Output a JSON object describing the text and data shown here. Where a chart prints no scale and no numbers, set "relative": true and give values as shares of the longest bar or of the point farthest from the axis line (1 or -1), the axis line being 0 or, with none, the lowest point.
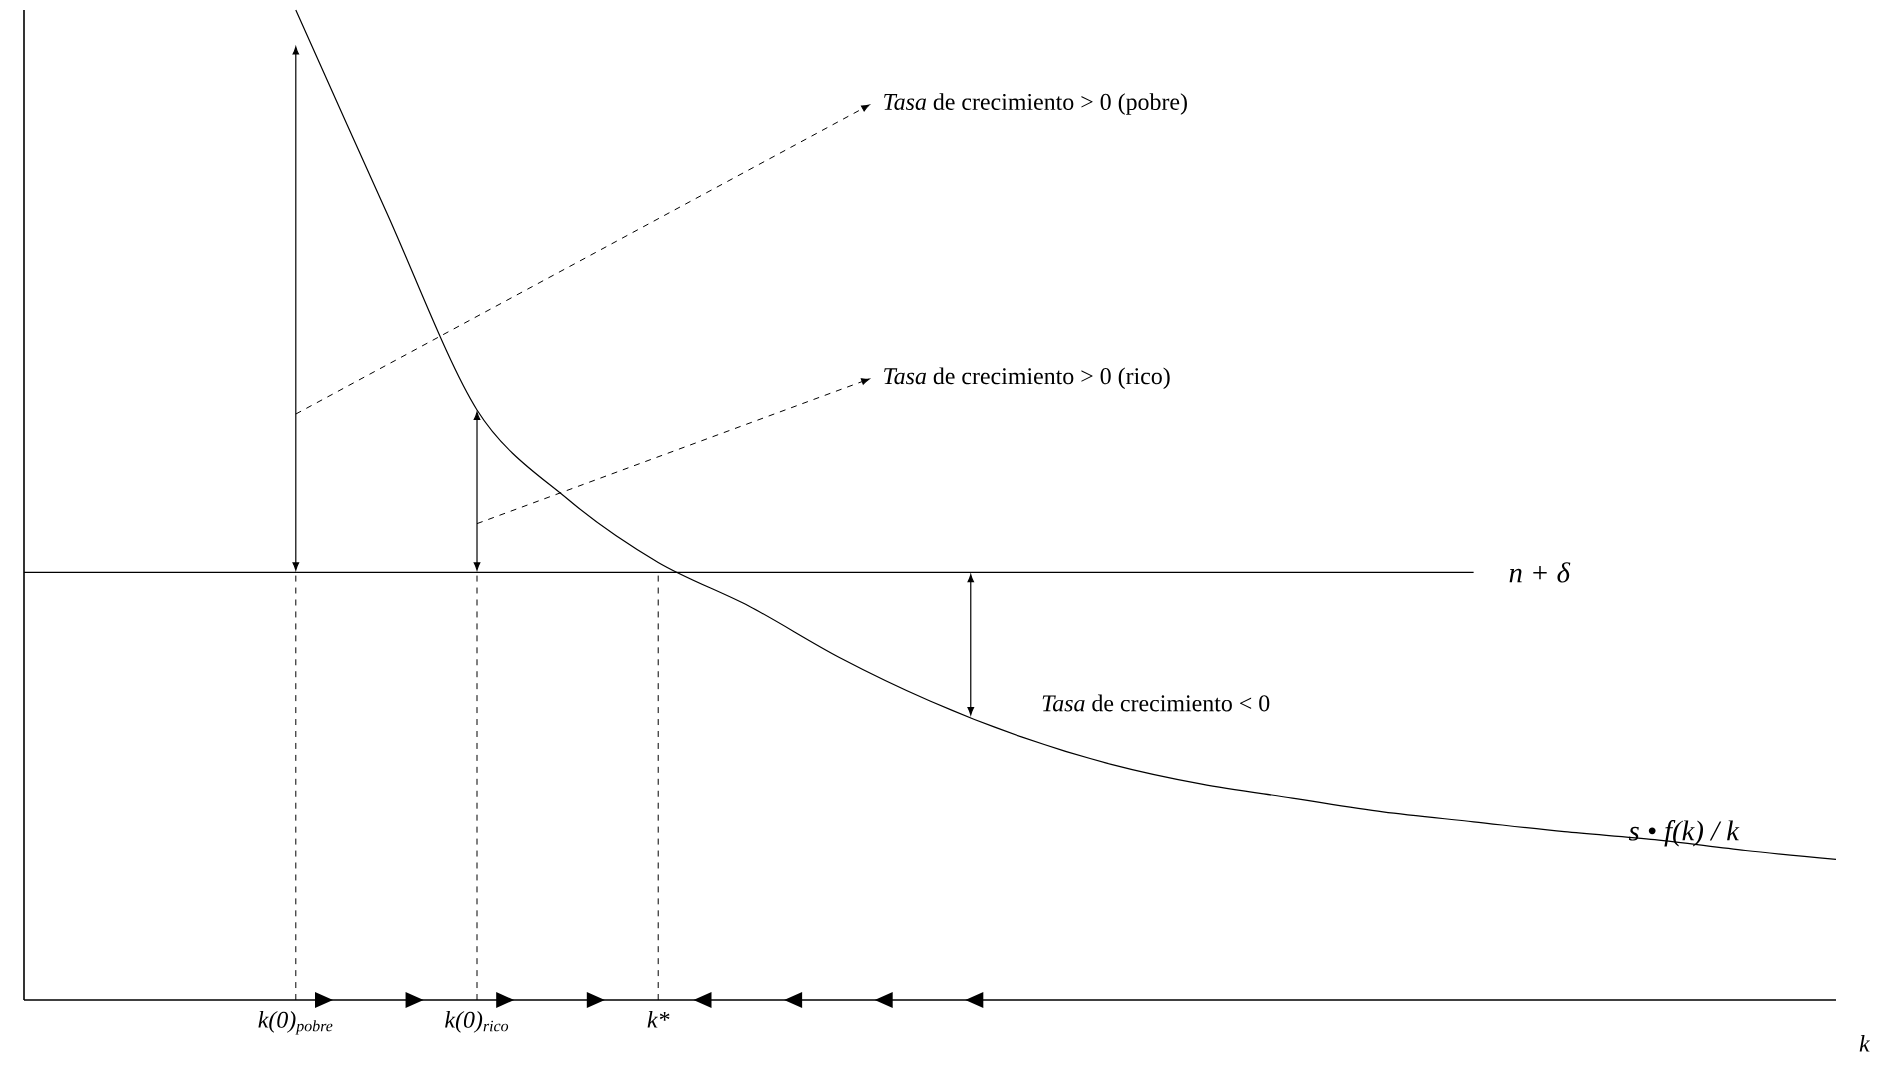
{
  "chart_data": {
    "type": "line",
    "relative": true,
    "categories": [
      null,
      null,
      null,
      "k(0)$_{pobre}$",
      null,
      "k(0)$_{rico}$",
      null,
      "k*",
      null,
      null,
      null,
      null,
      null,
      null,
      null,
      null,
      null,
      null,
      null,
      null,
      null
    ],
    "xlabel": "k",
    "tick_labels": "x",
    "legend": false,
    "marker": "none",
    "series": [
      {
        "name": "n + δ",
        "color": "#000000",
        "values": [
          0.432,
          0.432,
          0.432,
          0.432,
          0.432,
          0.432,
          0.432,
          0.432,
          0.432,
          0.432,
          0.432,
          0.432,
          0.432,
          0.432,
          0.432,
          0.432,
          0.432,
          null,
          null,
          null,
          null
        ]
      },
      {
        "name": "s • f(k) / k",
        "color": "#000000",
        "values": [
          null,
          null,
          null,
          1,
          0.796,
          0.596,
          0.506,
          0.442,
          0.398,
          0.346,
          0.302,
          0.266,
          0.238,
          0.218,
          0.204,
          0.19,
          0.18,
          0.17,
          0.162,
          0.151,
          0.142
        ]
      }
    ],
    "ref_lines": [
      {
        "axis": "x",
        "value": "k(0)$_{pobre}$",
        "line_style": "dashed"
      },
      {
        "axis": "x",
        "value": "k(0)$_{rico}$",
        "line_style": "dashed"
      },
      {
        "axis": "x",
        "value": "k*",
        "line_style": "dashed"
      }
    ],
    "annotations": [
      "*Tasa* de crecimiento > 0 (pobre)",
      "*Tasa* de crecimiento > 0 (rico)",
      "*Tasa* de crecimiento < 0"
    ]
  }
}
